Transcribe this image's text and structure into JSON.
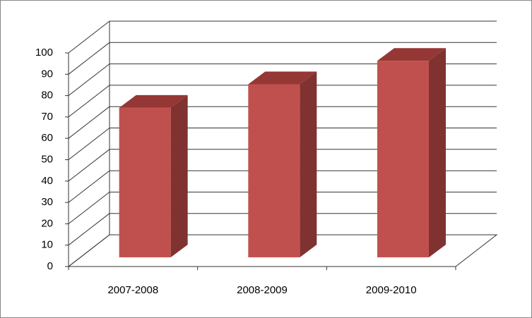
{
  "chart_data": {
    "type": "bar3d",
    "categories": [
      "2007-2008",
      "2008-2009",
      "2009-2010"
    ],
    "values": [
      70,
      81,
      92
    ],
    "color": "#c0504d",
    "ylim": [
      0,
      100
    ],
    "yticks": [
      0,
      10,
      20,
      30,
      40,
      50,
      60,
      70,
      80,
      90,
      100
    ],
    "grid": true
  }
}
